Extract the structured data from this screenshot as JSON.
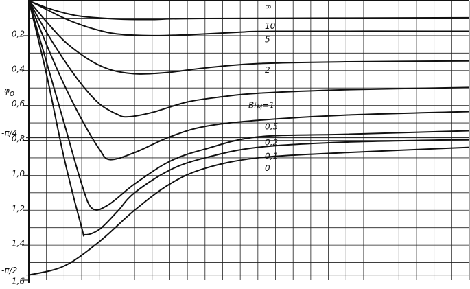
{
  "chart_data": {
    "type": "line",
    "ylabel": "φ",
    "ylabel_sub": "o",
    "bi_label": "Bi",
    "bi_sub": "M",
    "bi_eq": "=",
    "xlim": [
      0,
      25
    ],
    "ylim": [
      0,
      1.6
    ],
    "y_reversed": true,
    "grid": true,
    "color": "#111111",
    "yticks": [
      {
        "value": 0.2,
        "label": "0,2"
      },
      {
        "value": 0.4,
        "label": "0,4"
      },
      {
        "value": 0.6,
        "label": "0,6"
      },
      {
        "value": 0.8,
        "label": "0,8"
      },
      {
        "value": 1.0,
        "label": "1,0"
      },
      {
        "value": 1.2,
        "label": "1,2"
      },
      {
        "value": 1.4,
        "label": "1,4"
      },
      {
        "value": 1.6,
        "label": "1,6"
      }
    ],
    "special_ticks": [
      {
        "value": 0.785,
        "label": "-π/4"
      },
      {
        "value": 1.571,
        "label": "-π/2"
      }
    ],
    "series": [
      {
        "name": "∞",
        "x": [
          0,
          25
        ],
        "values": [
          0,
          0
        ]
      },
      {
        "name": "10",
        "x": [
          0,
          1,
          2,
          3,
          5,
          7,
          10,
          25
        ],
        "values": [
          0,
          0.04,
          0.07,
          0.09,
          0.105,
          0.108,
          0.102,
          0.098
        ]
      },
      {
        "name": "5",
        "x": [
          0,
          1,
          2,
          3,
          4,
          5,
          7,
          9,
          12,
          14,
          25
        ],
        "values": [
          0,
          0.05,
          0.1,
          0.14,
          0.17,
          0.19,
          0.2,
          0.195,
          0.18,
          0.175,
          0.175
        ]
      },
      {
        "name": "2",
        "x": [
          0,
          1,
          2,
          3,
          4,
          5,
          6.3,
          8,
          10,
          13,
          18,
          25
        ],
        "values": [
          0,
          0.12,
          0.23,
          0.31,
          0.37,
          0.405,
          0.42,
          0.41,
          0.385,
          0.36,
          0.35,
          0.345
        ]
      },
      {
        "name": "1",
        "x": [
          0,
          1,
          2,
          3,
          4,
          5,
          5.6,
          7,
          9,
          11,
          13,
          18,
          25
        ],
        "values": [
          0,
          0.18,
          0.34,
          0.48,
          0.59,
          0.65,
          0.665,
          0.64,
          0.58,
          0.55,
          0.53,
          0.51,
          0.497
        ]
      },
      {
        "name": "0,5",
        "x": [
          0,
          1,
          2,
          3,
          4,
          4.6,
          6,
          8,
          10,
          13,
          18,
          25
        ],
        "values": [
          0,
          0.25,
          0.48,
          0.68,
          0.85,
          0.91,
          0.87,
          0.78,
          0.72,
          0.685,
          0.655,
          0.635
        ]
      },
      {
        "name": "0,2",
        "x": [
          0,
          1,
          2,
          3,
          3.6,
          4.5,
          6,
          8,
          10,
          13,
          18,
          25
        ],
        "values": [
          0,
          0.35,
          0.7,
          1.05,
          1.19,
          1.17,
          1.05,
          0.92,
          0.85,
          0.78,
          0.765,
          0.745
        ]
      },
      {
        "name": "0,1",
        "x": [
          0,
          1,
          2,
          3,
          3.2,
          4,
          5,
          6,
          8,
          10,
          13,
          18,
          25
        ],
        "values": [
          0,
          0.42,
          0.9,
          1.3,
          1.34,
          1.31,
          1.21,
          1.1,
          0.97,
          0.9,
          0.84,
          0.81,
          0.795
        ]
      },
      {
        "name": "0",
        "x": [
          0,
          2,
          4,
          6,
          8,
          10,
          13,
          18,
          25
        ],
        "values": [
          1.571,
          1.52,
          1.38,
          1.2,
          1.05,
          0.96,
          0.9,
          0.87,
          0.84
        ]
      }
    ]
  }
}
